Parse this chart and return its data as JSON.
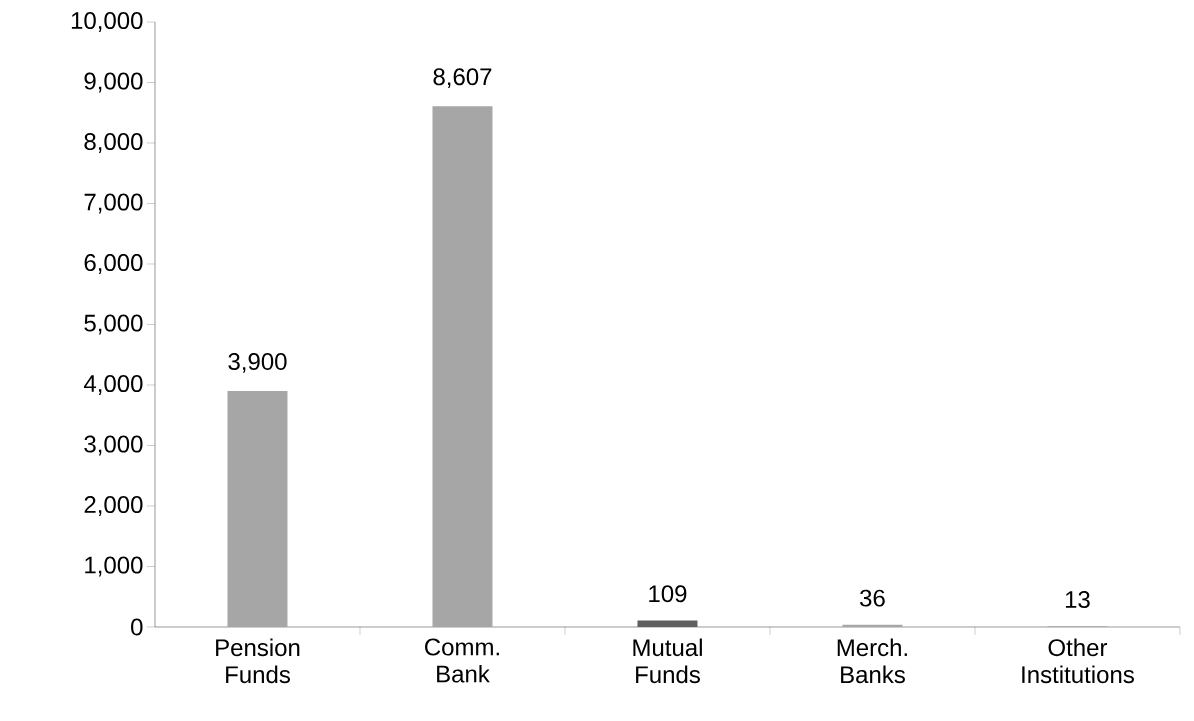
{
  "chart_data": {
    "type": "bar",
    "categories": [
      "Pension Funds",
      "Comm. Bank",
      "Mutual Funds",
      "Merch. Banks",
      "Other Institutions"
    ],
    "values": [
      3900,
      8607,
      109,
      36,
      13
    ],
    "value_labels": [
      "3,900",
      "8,607",
      "109",
      "36",
      "13"
    ],
    "colors": [
      "#a6a6a6",
      "#a6a6a6",
      "#5f5f5f",
      "#a6a6a6",
      "#a6a6a6"
    ],
    "ylim": [
      0,
      10000
    ],
    "yticks": [
      {
        "value": 0,
        "label": "0"
      },
      {
        "value": 1000,
        "label": "1,000"
      },
      {
        "value": 2000,
        "label": "2,000"
      },
      {
        "value": 3000,
        "label": "3,000"
      },
      {
        "value": 4000,
        "label": "4,000"
      },
      {
        "value": 5000,
        "label": "5,000"
      },
      {
        "value": 6000,
        "label": "6,000"
      },
      {
        "value": 7000,
        "label": "7,000"
      },
      {
        "value": 8000,
        "label": "8,000"
      },
      {
        "value": 9000,
        "label": "9,000"
      },
      {
        "value": 10000,
        "label": "10,000"
      }
    ],
    "grid": false
  }
}
